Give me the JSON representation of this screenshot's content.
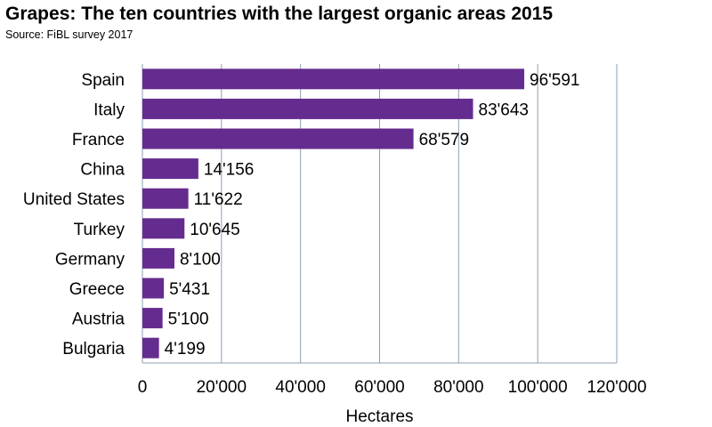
{
  "chart_data": {
    "type": "bar",
    "orientation": "horizontal",
    "title": "Grapes: The ten countries with the largest organic areas 2015",
    "subtitle": "Source: FiBL survey 2017",
    "xlabel": "Hectares",
    "ylabel": "",
    "categories": [
      "Spain",
      "Italy",
      "France",
      "China",
      "United States",
      "Turkey",
      "Germany",
      "Greece",
      "Austria",
      "Bulgaria"
    ],
    "values": [
      96591,
      83643,
      68579,
      14156,
      11622,
      10645,
      8100,
      5431,
      5100,
      4199
    ],
    "value_labels": [
      "96'591",
      "83'643",
      "68'579",
      "14'156",
      "11'622",
      "10'645",
      "8'100",
      "5'431",
      "5'100",
      "4'199"
    ],
    "xlim": [
      0,
      120000
    ],
    "x_ticks": [
      0,
      20000,
      40000,
      60000,
      80000,
      100000,
      120000
    ],
    "x_tick_labels": [
      "0",
      "20'000",
      "40'000",
      "60'000",
      "80'000",
      "100'000",
      "120'000"
    ],
    "grid": "vertical",
    "legend": "none",
    "bar_color": "#652c8f",
    "grid_color": "#8e9fb3"
  }
}
